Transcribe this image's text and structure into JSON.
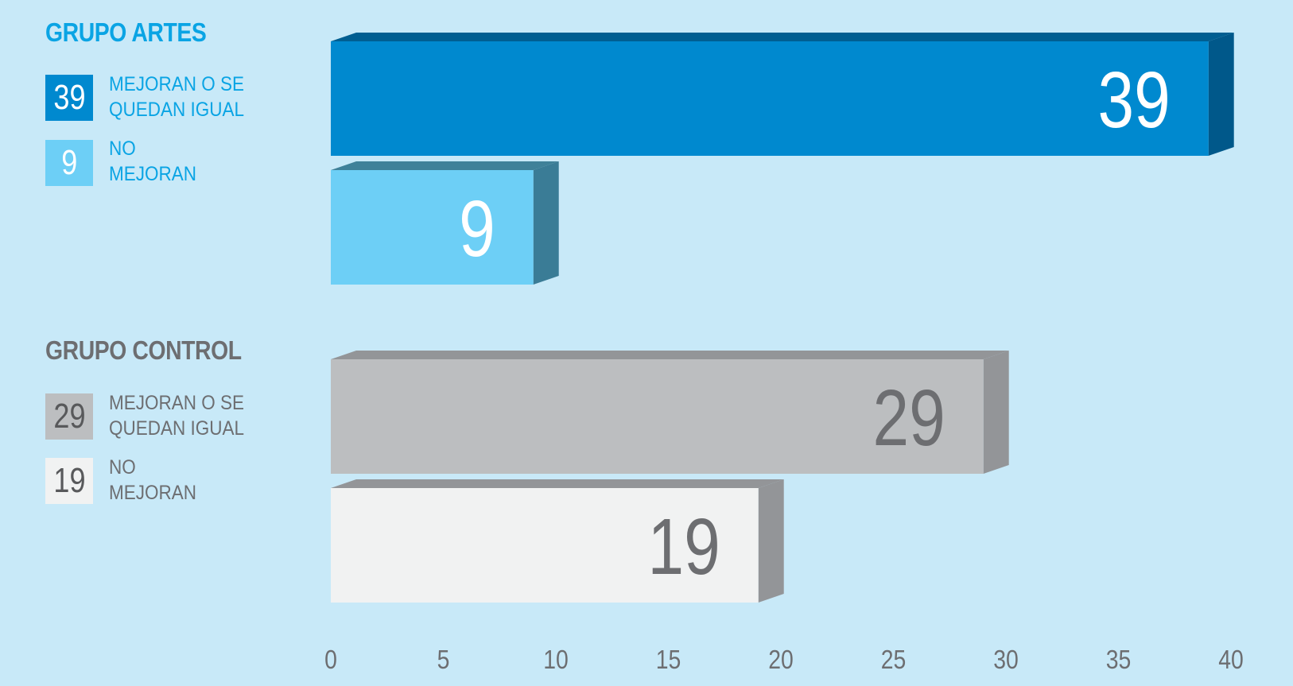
{
  "colors": {
    "background": "#c8e9f8",
    "artes_title": "#0aa4e4",
    "control_title": "#6d6e71",
    "artes_mejoran": "#0089cf",
    "artes_no_mejoran": "#6dcff6",
    "control_mejoran": "#bcbec0",
    "control_no_mejoran": "#f1f2f2"
  },
  "legend": {
    "artes": {
      "title": "GRUPO ARTES",
      "items": [
        {
          "value": "39",
          "label": "MEJORAN O SE\nQUEDAN IGUAL"
        },
        {
          "value": "9",
          "label": "NO\nMEJORAN"
        }
      ]
    },
    "control": {
      "title": "GRUPO CONTROL",
      "items": [
        {
          "value": "29",
          "label": "MEJORAN O SE\nQUEDAN IGUAL"
        },
        {
          "value": "19",
          "label": "NO\nMEJORAN"
        }
      ]
    }
  },
  "chart_data": {
    "type": "bar",
    "orientation": "horizontal",
    "title": "",
    "xlabel": "",
    "ylabel": "",
    "xlim": [
      0,
      40
    ],
    "x_ticks": [
      0,
      5,
      10,
      15,
      20,
      25,
      30,
      35,
      40
    ],
    "grid": false,
    "bars": [
      {
        "group": "GRUPO ARTES",
        "category": "MEJORAN O SE QUEDAN IGUAL",
        "value": 39
      },
      {
        "group": "GRUPO ARTES",
        "category": "NO MEJORAN",
        "value": 9
      },
      {
        "group": "GRUPO CONTROL",
        "category": "MEJORAN O SE QUEDAN IGUAL",
        "value": 29
      },
      {
        "group": "GRUPO CONTROL",
        "category": "NO MEJORAN",
        "value": 19
      }
    ]
  }
}
